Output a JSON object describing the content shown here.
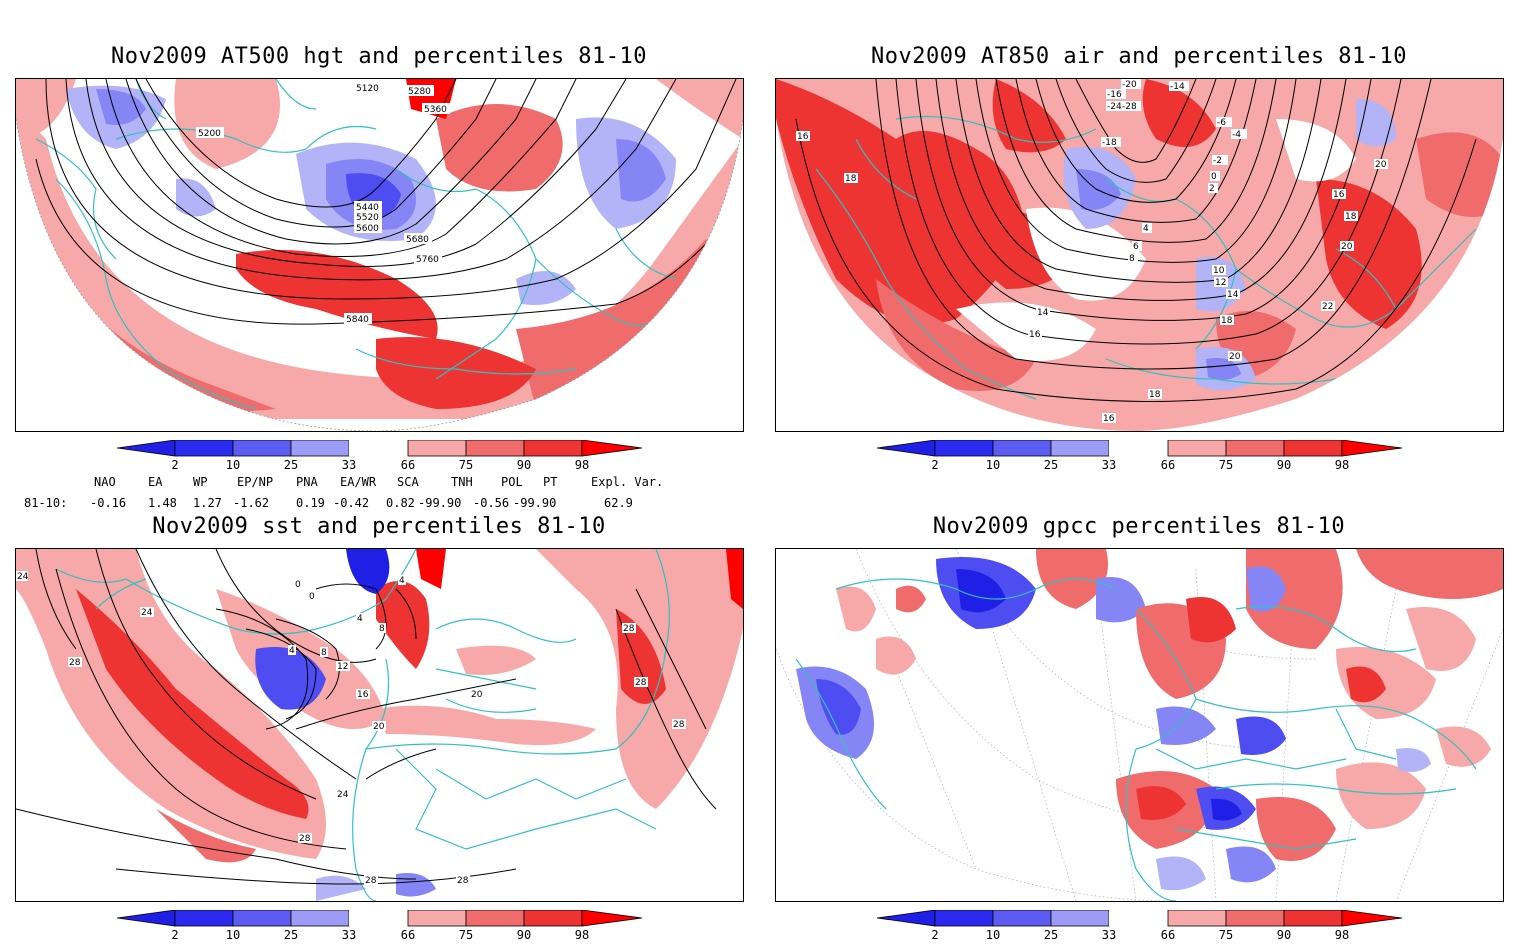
{
  "colors": {
    "blue2": "#1f1fe6",
    "blue10": "#4d4df2",
    "blue25": "#8585f5",
    "blue33": "#b3b3f8",
    "red66": "#f7a8a8",
    "red75": "#f06b6b",
    "red90": "#ee3333",
    "red98": "#ff0000",
    "coast": "#33c0c0",
    "contour": "#000000",
    "frame": "#000000"
  },
  "colorbar_labels": [
    "2",
    "10",
    "25",
    "33",
    "66",
    "75",
    "90",
    "98"
  ],
  "panels": [
    {
      "title": "Nov2009 AT500 hgt and percentiles 81-10",
      "contour_labels": [
        "5120",
        "5200",
        "5280",
        "5360",
        "5440",
        "5520",
        "5600",
        "5680",
        "5760",
        "5840"
      ]
    },
    {
      "title": "Nov2009 AT850 air and percentiles 81-10",
      "contour_labels": [
        "-20",
        "-14",
        "-16",
        "-24",
        "-28",
        "-18",
        "-6",
        "-4",
        "-2",
        "0",
        "2",
        "4",
        "6",
        "8",
        "10",
        "12",
        "14",
        "16",
        "18",
        "20",
        "22",
        "16",
        "18",
        "20",
        "14",
        "16",
        "18",
        "20",
        "18",
        "16"
      ]
    },
    {
      "title": "Nov2009 sst and percentiles 81-10",
      "contour_labels": [
        "24",
        "28",
        "24",
        "0",
        "0",
        "4",
        "4",
        "8",
        "4",
        "8",
        "12",
        "16",
        "20",
        "20",
        "24",
        "28",
        "28",
        "28",
        "28",
        "28",
        "28"
      ]
    },
    {
      "title": "Nov2009 gpcc percentiles 81-10",
      "contour_labels": []
    }
  ],
  "indices": {
    "headers": [
      "NAO",
      "EA",
      "WP",
      "EP/NP",
      "PNA",
      "EA/WR",
      "SCA",
      "TNH",
      "POL",
      "PT",
      "Expl. Var."
    ],
    "row_label": "81-10:",
    "values": [
      "-0.16",
      "1.48",
      "1.27",
      "-1.62",
      "0.19",
      "-0.42",
      "0.82",
      "-99.90",
      "-0.56",
      "-99.90",
      "62.9"
    ]
  }
}
